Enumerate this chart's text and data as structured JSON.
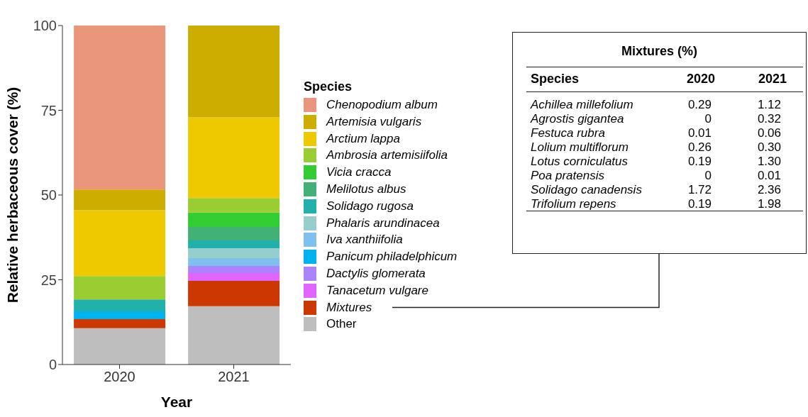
{
  "chart_data": {
    "type": "bar",
    "stacked": true,
    "categories": [
      "2020",
      "2021"
    ],
    "xlabel": "Year",
    "ylabel": "Relative herbaceous cover (%)",
    "ylim": [
      0,
      100
    ],
    "yticks": [
      0,
      25,
      50,
      75,
      100
    ],
    "legend": "right",
    "legend_title": "Species",
    "grid": false,
    "series": [
      {
        "name": "Other",
        "color": "#bebebe",
        "values": [
          10.7,
          17.2
        ]
      },
      {
        "name": "Mixtures",
        "color": "#cd3700",
        "values": [
          2.7,
          7.5
        ]
      },
      {
        "name": "Tanacetum vulgare",
        "color": "#e066ff",
        "values": [
          0,
          2.3
        ]
      },
      {
        "name": "Dactylis glomerata",
        "color": "#ab82ff",
        "values": [
          0,
          2.1
        ]
      },
      {
        "name": "Panicum philadelphicum",
        "color": "#00b2ee",
        "values": [
          2.3,
          0
        ]
      },
      {
        "name": "Iva xanthiifolia",
        "color": "#7ec0ee",
        "values": [
          0,
          2.3
        ]
      },
      {
        "name": "Phalaris arundinacea",
        "color": "#96cdcd",
        "values": [
          0,
          2.9
        ]
      },
      {
        "name": "Solidago rugosa",
        "color": "#20b2aa",
        "values": [
          3.5,
          2.3
        ]
      },
      {
        "name": "Melilotus albus",
        "color": "#43b175",
        "values": [
          0,
          4.0
        ]
      },
      {
        "name": "Vicia cracca",
        "color": "#32cd32",
        "values": [
          0,
          4.2
        ]
      },
      {
        "name": "Ambrosia artemisiifolia",
        "color": "#9acd32",
        "values": [
          6.9,
          4.3
        ]
      },
      {
        "name": "Arctium lappa",
        "color": "#eec900",
        "values": [
          19.4,
          23.8
        ]
      },
      {
        "name": "Artemisia vulgaris",
        "color": "#cdad00",
        "values": [
          6.1,
          27.1
        ]
      },
      {
        "name": "Chenopodium album",
        "color": "#e9967a",
        "values": [
          48.4,
          0
        ]
      }
    ],
    "annotations": [
      "Mixtures (%)",
      "Species",
      "2020",
      "2021",
      "Achillea millefolium",
      "0.29",
      "1.12",
      "Agrostis gigantea",
      "0",
      "0.32",
      "Festuca rubra",
      "0.01",
      "0.06",
      "Lolium multiflorum",
      "0.26",
      "0.30",
      "Lotus corniculatus",
      "0.19",
      "1.30",
      "Poa pratensis",
      "0",
      "0.01",
      "Solidago canadensis",
      "1.72",
      "2.36",
      "Trifolium repens",
      "0.19",
      "1.98"
    ]
  }
}
